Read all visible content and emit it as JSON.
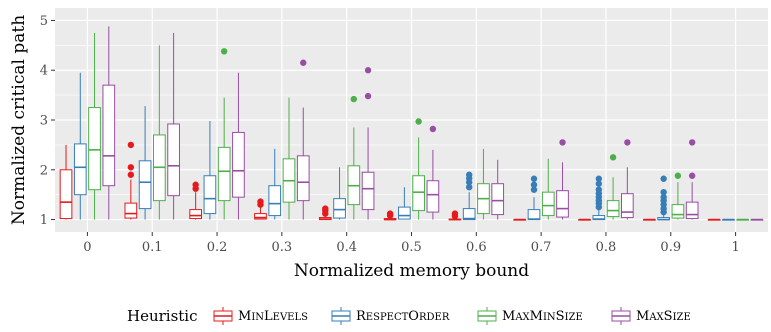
{
  "chart_data": {
    "type": "boxplot",
    "xlabel": "Normalized memory bound",
    "ylabel": "Normalized critical path",
    "categories": [
      "0",
      "0.1",
      "0.2",
      "0.3",
      "0.4",
      "0.5",
      "0.6",
      "0.7",
      "0.8",
      "0.9",
      "1"
    ],
    "ylim": [
      0.75,
      5.25
    ],
    "yticks": [
      1,
      2,
      3,
      4,
      5
    ],
    "grid": true,
    "legend_position": "bottom",
    "legend_title": "Heuristic",
    "series": [
      {
        "name": "MinLevels",
        "color": "#e41a1c",
        "boxes": [
          {
            "min": 1.0,
            "q1": 1.02,
            "median": 1.35,
            "q3": 2.0,
            "max": 2.5,
            "outliers": []
          },
          {
            "min": 1.0,
            "q1": 1.03,
            "median": 1.12,
            "q3": 1.33,
            "max": 1.8,
            "outliers": [
              1.9,
              2.05,
              2.5
            ]
          },
          {
            "min": 1.0,
            "q1": 1.02,
            "median": 1.08,
            "q3": 1.2,
            "max": 1.55,
            "outliers": [
              1.62,
              1.7
            ]
          },
          {
            "min": 1.0,
            "q1": 1.01,
            "median": 1.04,
            "q3": 1.12,
            "max": 1.25,
            "outliers": [
              1.3,
              1.36
            ]
          },
          {
            "min": 1.0,
            "q1": 1.0,
            "median": 1.01,
            "q3": 1.04,
            "max": 1.08,
            "outliers": [
              1.12,
              1.18,
              1.22
            ]
          },
          {
            "min": 1.0,
            "q1": 1.0,
            "median": 1.0,
            "q3": 1.02,
            "max": 1.05,
            "outliers": [
              1.08,
              1.12
            ]
          },
          {
            "min": 1.0,
            "q1": 1.0,
            "median": 1.0,
            "q3": 1.01,
            "max": 1.03,
            "outliers": [
              1.07,
              1.12
            ]
          },
          {
            "min": 1.0,
            "q1": 1.0,
            "median": 1.0,
            "q3": 1.0,
            "max": 1.0,
            "outliers": []
          },
          {
            "min": 1.0,
            "q1": 1.0,
            "median": 1.0,
            "q3": 1.0,
            "max": 1.0,
            "outliers": []
          },
          {
            "min": 1.0,
            "q1": 1.0,
            "median": 1.0,
            "q3": 1.0,
            "max": 1.0,
            "outliers": []
          },
          {
            "min": 1.0,
            "q1": 1.0,
            "median": 1.0,
            "q3": 1.0,
            "max": 1.0,
            "outliers": []
          }
        ]
      },
      {
        "name": "RespectOrder",
        "color": "#377eb8",
        "boxes": [
          {
            "min": 1.0,
            "q1": 1.5,
            "median": 2.05,
            "q3": 2.52,
            "max": 3.95,
            "outliers": []
          },
          {
            "min": 1.0,
            "q1": 1.22,
            "median": 1.75,
            "q3": 2.18,
            "max": 3.28,
            "outliers": []
          },
          {
            "min": 1.0,
            "q1": 1.12,
            "median": 1.42,
            "q3": 1.88,
            "max": 2.98,
            "outliers": []
          },
          {
            "min": 1.0,
            "q1": 1.08,
            "median": 1.32,
            "q3": 1.68,
            "max": 2.42,
            "outliers": []
          },
          {
            "min": 1.0,
            "q1": 1.03,
            "median": 1.2,
            "q3": 1.42,
            "max": 2.05,
            "outliers": []
          },
          {
            "min": 1.0,
            "q1": 1.01,
            "median": 1.08,
            "q3": 1.25,
            "max": 1.65,
            "outliers": []
          },
          {
            "min": 1.0,
            "q1": 1.0,
            "median": 1.02,
            "q3": 1.22,
            "max": 1.55,
            "outliers": [
              1.65,
              1.75,
              1.83,
              1.9
            ]
          },
          {
            "min": 1.0,
            "q1": 1.0,
            "median": 1.01,
            "q3": 1.2,
            "max": 1.45,
            "outliers": [
              1.6,
              1.7,
              1.82
            ]
          },
          {
            "min": 1.0,
            "q1": 1.0,
            "median": 1.01,
            "q3": 1.08,
            "max": 1.2,
            "outliers": [
              1.25,
              1.32,
              1.38,
              1.45,
              1.52,
              1.6,
              1.72,
              1.82
            ]
          },
          {
            "min": 1.0,
            "q1": 1.0,
            "median": 1.0,
            "q3": 1.04,
            "max": 1.1,
            "outliers": [
              1.15,
              1.22,
              1.3,
              1.38,
              1.45,
              1.55,
              1.82
            ]
          },
          {
            "min": 1.0,
            "q1": 1.0,
            "median": 1.0,
            "q3": 1.0,
            "max": 1.0,
            "outliers": []
          }
        ]
      },
      {
        "name": "MaxMinSize",
        "color": "#4daf4a",
        "boxes": [
          {
            "min": 1.0,
            "q1": 1.6,
            "median": 2.4,
            "q3": 3.25,
            "max": 4.75,
            "outliers": []
          },
          {
            "min": 1.0,
            "q1": 1.38,
            "median": 2.05,
            "q3": 2.7,
            "max": 4.5,
            "outliers": []
          },
          {
            "min": 1.0,
            "q1": 1.38,
            "median": 1.97,
            "q3": 2.45,
            "max": 3.45,
            "outliers": [
              4.38
            ]
          },
          {
            "min": 1.0,
            "q1": 1.35,
            "median": 1.78,
            "q3": 2.22,
            "max": 3.45,
            "outliers": []
          },
          {
            "min": 1.0,
            "q1": 1.3,
            "median": 1.68,
            "q3": 2.08,
            "max": 2.85,
            "outliers": [
              3.42
            ]
          },
          {
            "min": 1.0,
            "q1": 1.18,
            "median": 1.55,
            "q3": 1.88,
            "max": 2.65,
            "outliers": [
              2.97
            ]
          },
          {
            "min": 1.0,
            "q1": 1.12,
            "median": 1.42,
            "q3": 1.72,
            "max": 2.42,
            "outliers": []
          },
          {
            "min": 1.0,
            "q1": 1.08,
            "median": 1.28,
            "q3": 1.55,
            "max": 2.22,
            "outliers": []
          },
          {
            "min": 1.0,
            "q1": 1.06,
            "median": 1.18,
            "q3": 1.38,
            "max": 1.85,
            "outliers": [
              2.25
            ]
          },
          {
            "min": 1.0,
            "q1": 1.03,
            "median": 1.1,
            "q3": 1.3,
            "max": 1.75,
            "outliers": [
              1.88
            ]
          },
          {
            "min": 1.0,
            "q1": 1.0,
            "median": 1.0,
            "q3": 1.0,
            "max": 1.0,
            "outliers": []
          }
        ]
      },
      {
        "name": "MaxSize",
        "color": "#984ea3",
        "boxes": [
          {
            "min": 1.0,
            "q1": 1.68,
            "median": 2.28,
            "q3": 3.7,
            "max": 4.88,
            "outliers": []
          },
          {
            "min": 1.0,
            "q1": 1.48,
            "median": 2.08,
            "q3": 2.92,
            "max": 4.75,
            "outliers": []
          },
          {
            "min": 1.0,
            "q1": 1.45,
            "median": 1.98,
            "q3": 2.75,
            "max": 3.95,
            "outliers": []
          },
          {
            "min": 1.0,
            "q1": 1.38,
            "median": 1.75,
            "q3": 2.28,
            "max": 3.25,
            "outliers": [
              4.15
            ]
          },
          {
            "min": 1.0,
            "q1": 1.2,
            "median": 1.62,
            "q3": 1.95,
            "max": 2.85,
            "outliers": [
              3.48,
              4.0
            ]
          },
          {
            "min": 1.0,
            "q1": 1.15,
            "median": 1.5,
            "q3": 1.78,
            "max": 2.4,
            "outliers": [
              2.82
            ]
          },
          {
            "min": 1.0,
            "q1": 1.1,
            "median": 1.38,
            "q3": 1.72,
            "max": 2.2,
            "outliers": []
          },
          {
            "min": 1.0,
            "q1": 1.05,
            "median": 1.22,
            "q3": 1.58,
            "max": 2.15,
            "outliers": [
              2.55
            ]
          },
          {
            "min": 1.0,
            "q1": 1.04,
            "median": 1.15,
            "q3": 1.52,
            "max": 2.05,
            "outliers": [
              2.55
            ]
          },
          {
            "min": 1.0,
            "q1": 1.02,
            "median": 1.1,
            "q3": 1.35,
            "max": 1.75,
            "outliers": [
              1.88,
              2.55
            ]
          },
          {
            "min": 1.0,
            "q1": 1.0,
            "median": 1.0,
            "q3": 1.0,
            "max": 1.0,
            "outliers": []
          }
        ]
      }
    ]
  }
}
